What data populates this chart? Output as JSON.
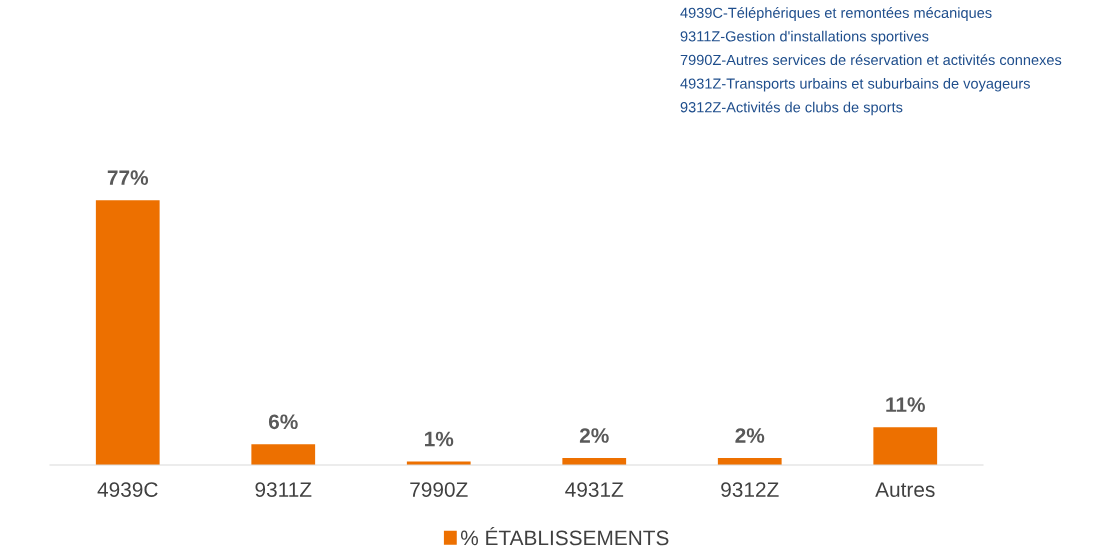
{
  "chart_data": {
    "type": "bar",
    "categories": [
      "4939C",
      "9311Z",
      "7990Z",
      "4931Z",
      "9312Z",
      "Autres"
    ],
    "series": [
      {
        "name": "% ÉTABLISSEMENTS",
        "color": "#ed7000",
        "values": [
          77,
          6,
          1,
          2,
          2,
          11
        ],
        "value_labels": [
          "77%",
          "6%",
          "1%",
          "2%",
          "2%",
          "11%"
        ]
      }
    ],
    "annotations": [
      "4939C-Téléphériques et remontées mécaniques",
      "9311Z-Gestion d'installations sportives",
      "7990Z-Autres services de réservation et activités connexes",
      "4931Z-Transports urbains et suburbains de voyageurs",
      "9312Z-Activités de clubs de sports"
    ],
    "legend": "bottom",
    "grid": false
  }
}
